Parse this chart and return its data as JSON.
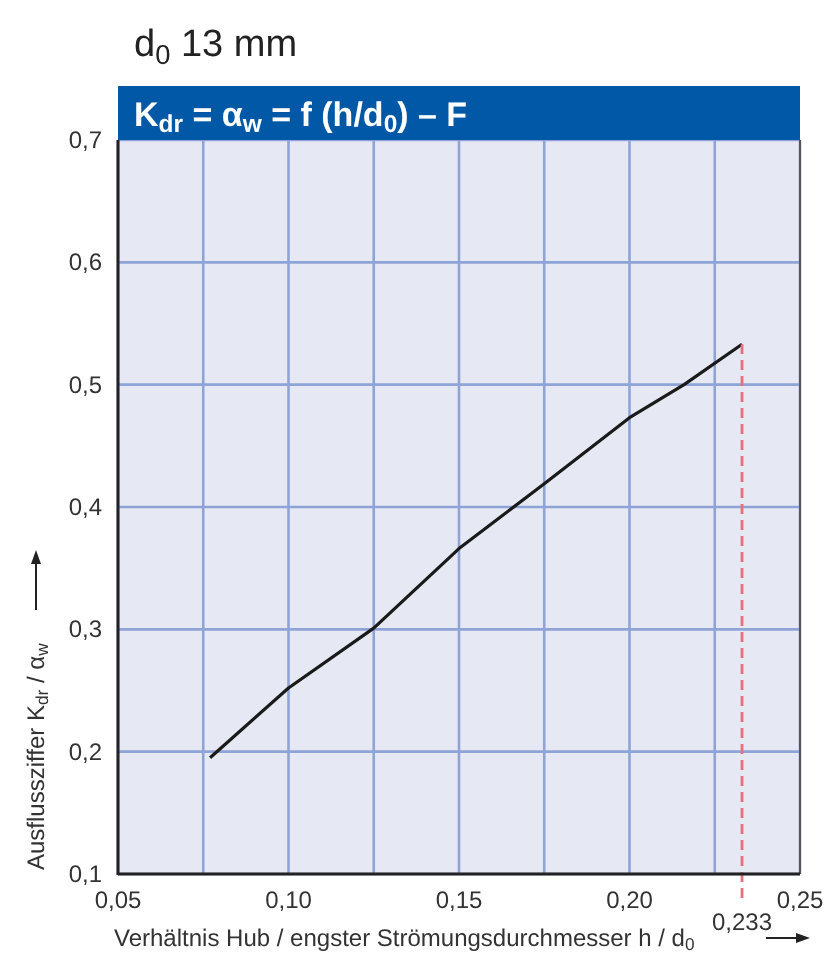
{
  "chart_data": {
    "type": "line",
    "title": "K$_{dr}$ = α$_{w}$ = f (h/d$_{0}$) – F",
    "subtitle": "d$_{0}$ 13 mm",
    "xlabel": "Verhältnis Hub / engster Strömungsdurchmesser h / d$_{0}$",
    "ylabel": "Ausflussziffer K$_{dr}$ / α$_{w}$",
    "series": [
      {
        "color": "#1a1a1a",
        "x": [
          0.077,
          0.1,
          0.125,
          0.15,
          0.175,
          0.2,
          0.216,
          0.233
        ],
        "values": [
          0.195,
          0.252,
          0.301,
          0.366,
          0.419,
          0.473,
          0.5,
          0.533
        ]
      }
    ],
    "xlim": [
      0.05,
      0.25
    ],
    "xticks": [
      {
        "value": 0.05,
        "label": "0,05"
      },
      {
        "value": 0.075,
        "label": null
      },
      {
        "value": 0.1,
        "label": "0,10"
      },
      {
        "value": 0.125,
        "label": null
      },
      {
        "value": 0.15,
        "label": "0,15"
      },
      {
        "value": 0.175,
        "label": null
      },
      {
        "value": 0.2,
        "label": "0,20"
      },
      {
        "value": 0.225,
        "label": null
      },
      {
        "value": 0.25,
        "label": "0,25"
      }
    ],
    "ylim": [
      0.1,
      0.7
    ],
    "yticks": [
      {
        "value": 0.1,
        "label": "0,1"
      },
      {
        "value": 0.2,
        "label": "0,2"
      },
      {
        "value": 0.3,
        "label": "0,3"
      },
      {
        "value": 0.4,
        "label": "0,4"
      },
      {
        "value": 0.5,
        "label": "0,5"
      },
      {
        "value": 0.6,
        "label": "0,6"
      },
      {
        "value": 0.7,
        "label": "0,7"
      }
    ],
    "grid": true,
    "ref_lines": [
      {
        "axis": "x",
        "value": 0.233,
        "label": "0,233",
        "color": "#e8707a",
        "line_style": "dashed"
      }
    ]
  }
}
